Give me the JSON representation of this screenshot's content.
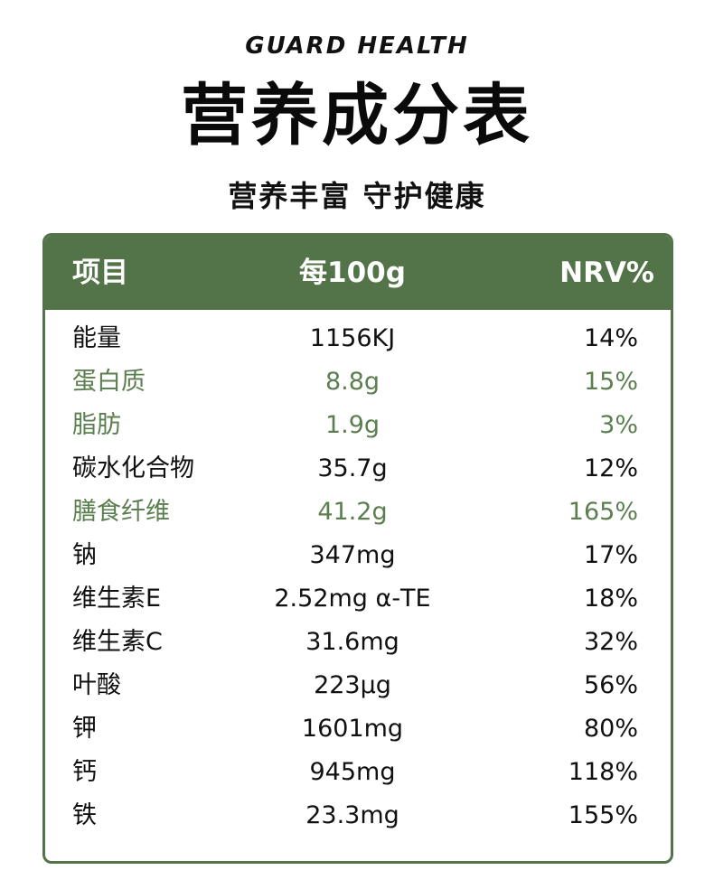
{
  "brand": "GUARD HEALTH",
  "title": "营养成分表",
  "subtitle": "营养丰富 守护健康",
  "colors": {
    "accent": "#537448",
    "highlight_text": "#5b7f4f",
    "text": "#111111"
  },
  "table": {
    "headers": [
      "项目",
      "每100g",
      "NRV%"
    ],
    "rows": [
      {
        "item": "能量",
        "per100g": "1156KJ",
        "nrv": "14%",
        "highlight": false
      },
      {
        "item": "蛋白质",
        "per100g": "8.8g",
        "nrv": "15%",
        "highlight": true
      },
      {
        "item": "脂肪",
        "per100g": "1.9g",
        "nrv": "3%",
        "highlight": true
      },
      {
        "item": "碳水化合物",
        "per100g": "35.7g",
        "nrv": "12%",
        "highlight": false
      },
      {
        "item": "膳食纤维",
        "per100g": "41.2g",
        "nrv": "165%",
        "highlight": true
      },
      {
        "item": "钠",
        "per100g": "347mg",
        "nrv": "17%",
        "highlight": false
      },
      {
        "item": "维生素E",
        "per100g": "2.52mg α-TE",
        "nrv": "18%",
        "highlight": false
      },
      {
        "item": "维生素C",
        "per100g": "31.6mg",
        "nrv": "32%",
        "highlight": false
      },
      {
        "item": "叶酸",
        "per100g": "223μg",
        "nrv": "56%",
        "highlight": false
      },
      {
        "item": "钾",
        "per100g": "1601mg",
        "nrv": "80%",
        "highlight": false
      },
      {
        "item": "钙",
        "per100g": "945mg",
        "nrv": "118%",
        "highlight": false
      },
      {
        "item": "铁",
        "per100g": "23.3mg",
        "nrv": "155%",
        "highlight": false
      }
    ]
  }
}
